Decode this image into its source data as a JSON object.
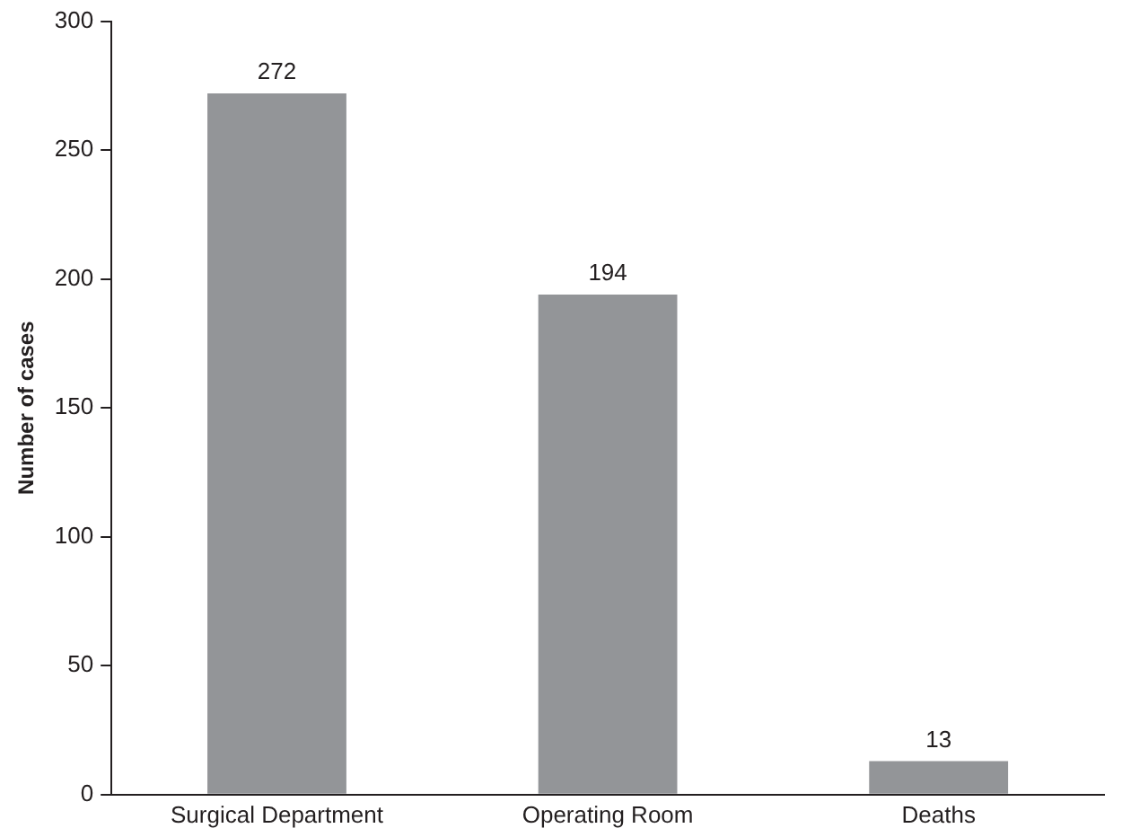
{
  "chart_data": {
    "type": "bar",
    "ylabel": "Number of cases",
    "categories": [
      "Surgical Department",
      "Operating Room",
      "Deaths"
    ],
    "values": [
      272,
      194,
      13
    ],
    "color": "#939598",
    "ylim": [
      0,
      300
    ],
    "yticks": [
      0,
      50,
      100,
      150,
      200,
      250,
      300
    ],
    "grid": false,
    "data_labels": true
  }
}
